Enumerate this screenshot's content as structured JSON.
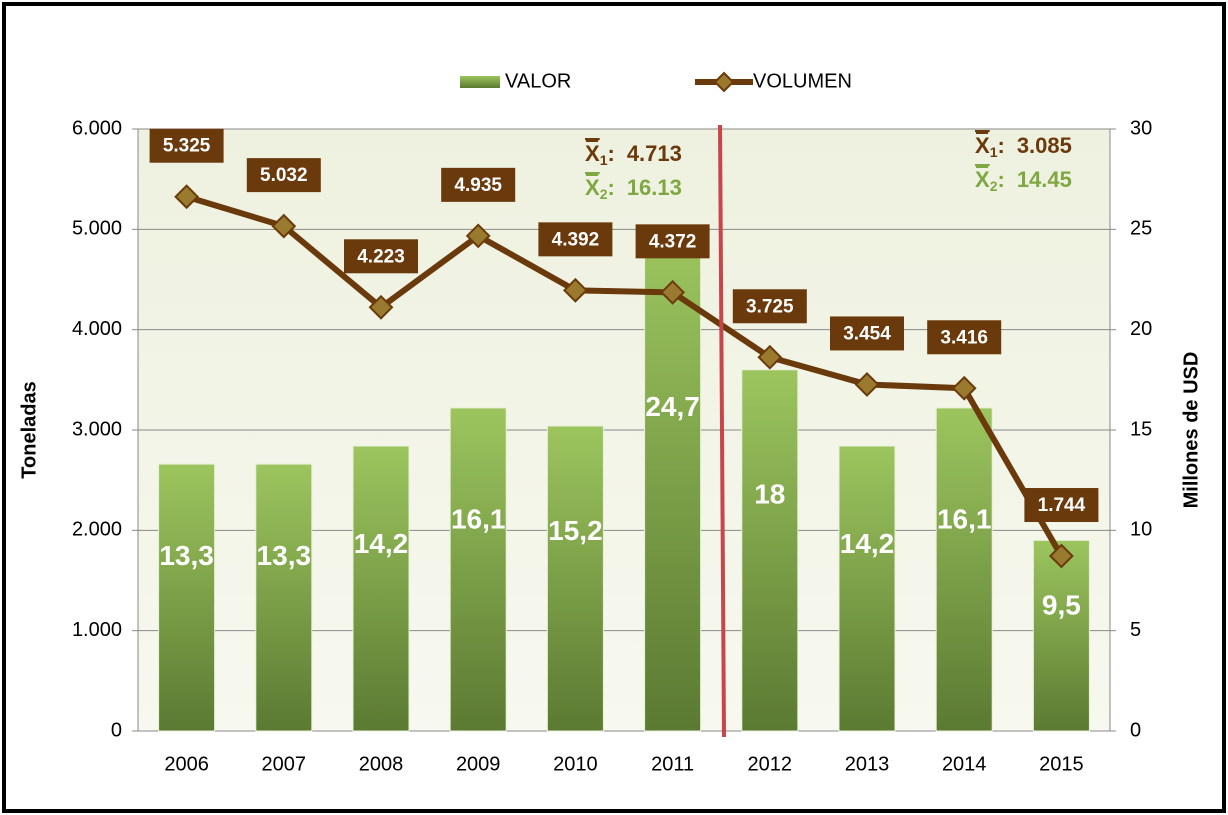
{
  "chart_data": {
    "type": "bar_line",
    "categories": [
      "2006",
      "2007",
      "2008",
      "2009",
      "2010",
      "2011",
      "2012",
      "2013",
      "2014",
      "2015"
    ],
    "series": [
      {
        "name": "VALOR",
        "type": "bar",
        "axis": "y2",
        "color": "#7fa843",
        "values": [
          13.3,
          13.3,
          14.2,
          16.1,
          15.2,
          24.7,
          18,
          14.2,
          16.1,
          9.5
        ],
        "value_labels": [
          "13,3",
          "13,3",
          "14,2",
          "16,1",
          "15,2",
          "24,7",
          "18",
          "14,2",
          "16,1",
          "9,5"
        ]
      },
      {
        "name": "VOLUMEN",
        "type": "line",
        "axis": "y",
        "color": "#6b3a0c",
        "values": [
          5325,
          5032,
          4223,
          4935,
          4392,
          4372,
          3725,
          3454,
          3416,
          1744
        ],
        "value_labels": [
          "5.325",
          "5.032",
          "4.223",
          "4.935",
          "4.392",
          "4.372",
          "3.725",
          "3.454",
          "3.416",
          "1.744"
        ]
      }
    ],
    "ylabel": "Toneladas",
    "y2label": "Millones de USD",
    "ylim": [
      0,
      6000
    ],
    "yticks": [
      0,
      {
        "value": 1000,
        "label": "1.000"
      },
      {
        "value": 2000,
        "label": "2.000"
      },
      {
        "value": 3000,
        "label": "3.000"
      },
      {
        "value": 4000,
        "label": "4.000"
      },
      {
        "value": 5000,
        "label": "5.000"
      },
      {
        "value": 6000,
        "label": "6.000"
      }
    ],
    "y2lim": [
      0,
      30
    ],
    "y2ticks": [
      0,
      5,
      10,
      15,
      20,
      25,
      30
    ],
    "grid": true,
    "legend": "top",
    "annotations": [
      {
        "symbol": "X",
        "subscript": "1",
        "separator": ":",
        "value": "4.713",
        "color": "#6b3a0c"
      },
      {
        "symbol": "X",
        "subscript": "2",
        "separator": ":",
        "value": "16.13",
        "color": "#7fa843"
      },
      {
        "symbol": "X",
        "subscript": "1",
        "separator": ":",
        "value": "3.085",
        "color": "#6b3a0c"
      },
      {
        "symbol": "X",
        "subscript": "2",
        "separator": ":",
        "value": "14.45",
        "color": "#7fa843"
      }
    ]
  }
}
